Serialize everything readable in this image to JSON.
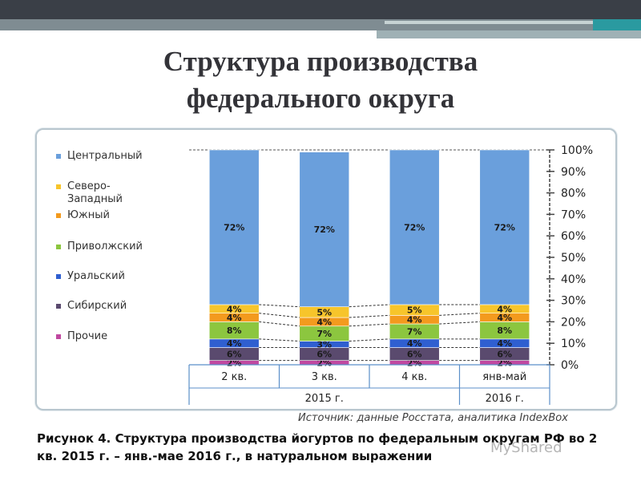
{
  "slide": {
    "title_line1": "Структура производства",
    "title_line2": "федерального округа"
  },
  "chart_data": {
    "type": "bar",
    "stacked": true,
    "categories": [
      "2 кв.",
      "3 кв.",
      "4 кв.",
      "янв-май"
    ],
    "groups": [
      {
        "label": "2015 г.",
        "categories": [
          "2 кв.",
          "3 кв.",
          "4 кв."
        ]
      },
      {
        "label": "2016 г.",
        "categories": [
          "янв-май"
        ]
      }
    ],
    "series": [
      {
        "name": "Прочие",
        "color": "#c048a0",
        "values": [
          2,
          2,
          2,
          2
        ],
        "labels": [
          "2%",
          "2%",
          "2%",
          "2%"
        ]
      },
      {
        "name": "Сибирский",
        "color": "#5a4a6e",
        "values": [
          6,
          6,
          6,
          6
        ],
        "labels": [
          "6%",
          "6%",
          "6%",
          "6%"
        ]
      },
      {
        "name": "Уральский",
        "color": "#2f5fd0",
        "values": [
          4,
          3,
          4,
          4
        ],
        "labels": [
          "4%",
          "3%",
          "4%",
          "4%"
        ]
      },
      {
        "name": "Приволжский",
        "color": "#8cc63f",
        "values": [
          8,
          7,
          7,
          8
        ],
        "labels": [
          "8%",
          "7%",
          "7%",
          "8%"
        ]
      },
      {
        "name": "Южный",
        "color": "#f39a1e",
        "values": [
          4,
          4,
          4,
          4
        ],
        "labels": [
          "4%",
          "4%",
          "4%",
          "4%"
        ]
      },
      {
        "name": "Северо-Западный",
        "legend_lines": [
          "Северо-",
          "Западный"
        ],
        "color": "#f7c52b",
        "values": [
          4,
          5,
          5,
          4
        ],
        "labels": [
          "4%",
          "5%",
          "5%",
          "4%"
        ]
      },
      {
        "name": "Центральный",
        "color": "#6a9fdc",
        "values": [
          72,
          72,
          72,
          72
        ],
        "labels": [
          "72%",
          "72%",
          "72%",
          "72%"
        ]
      }
    ],
    "legend_order": [
      "Центральный",
      "Северо-Западный",
      "Южный",
      "Приволжский",
      "Уральский",
      "Сибирский",
      "Прочие"
    ],
    "y_ticks": [
      "0%",
      "10%",
      "20%",
      "30%",
      "40%",
      "50%",
      "60%",
      "70%",
      "80%",
      "90%",
      "100%"
    ],
    "ylim": [
      0,
      100
    ],
    "y_axis_position": "right",
    "legend_position": "left"
  },
  "source": "Источник: данные Росстата, аналитика IndexBox",
  "caption": {
    "line1": "Рисунок 4. Структура производства йогуртов по федеральным округам РФ во 2",
    "line2": "кв. 2015 г. – янв.-мае 2016 г., в натуральном выражении"
  },
  "watermark": "MyShared"
}
